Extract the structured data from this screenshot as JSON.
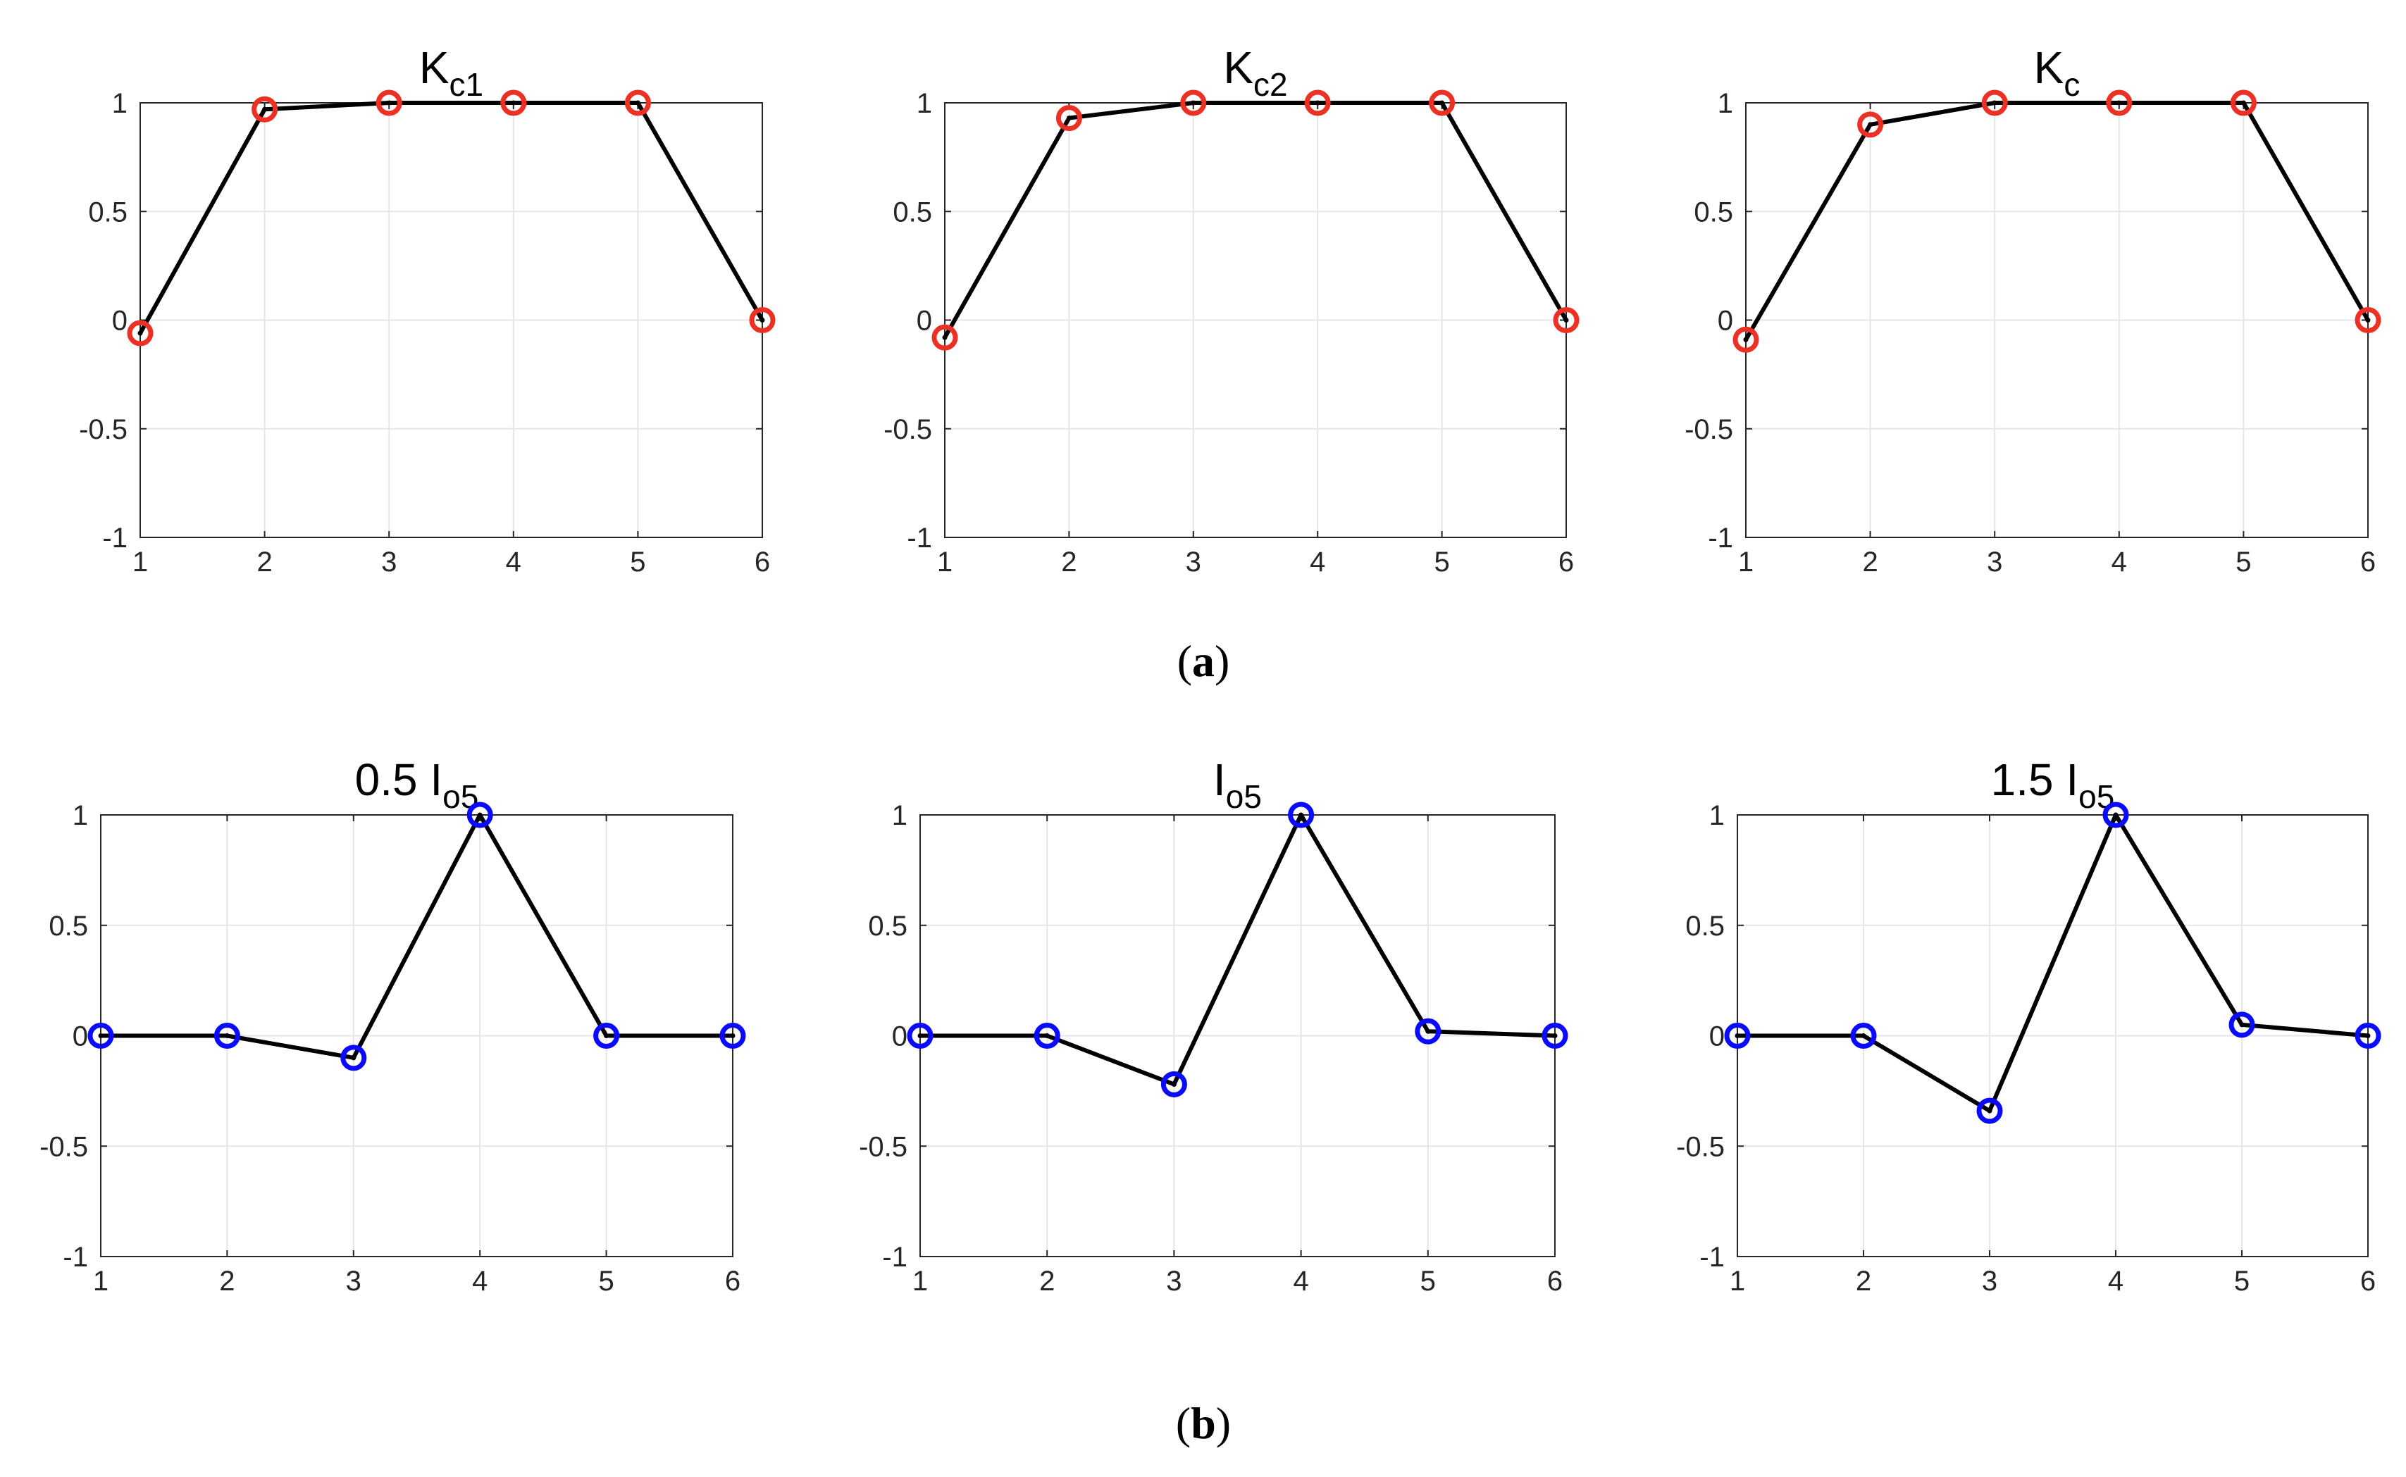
{
  "captions": {
    "a": {
      "open": "(",
      "letter": "a",
      "close": ")"
    },
    "b": {
      "open": "(",
      "letter": "b",
      "close": ")"
    }
  },
  "colors": {
    "row_a_marker": "#ec3023",
    "row_b_marker": "#0a0aff",
    "line": "#000000"
  },
  "chart_data": [
    {
      "type": "line",
      "title": "K",
      "title_sub": "c1",
      "categories": [
        1,
        2,
        3,
        4,
        5,
        6
      ],
      "values": [
        -0.06,
        0.97,
        1.0,
        1.0,
        1.0,
        0.0
      ],
      "ylim": [
        -1,
        1
      ],
      "yticks": [
        1,
        0.5,
        0,
        -0.5,
        -1
      ],
      "grid": true,
      "marker": "circle",
      "marker_color": "#ec3023"
    },
    {
      "type": "line",
      "title": "K",
      "title_sub": "c2",
      "categories": [
        1,
        2,
        3,
        4,
        5,
        6
      ],
      "values": [
        -0.08,
        0.93,
        1.0,
        1.0,
        1.0,
        0.0
      ],
      "ylim": [
        -1,
        1
      ],
      "yticks": [
        1,
        0.5,
        0,
        -0.5,
        -1
      ],
      "grid": true,
      "marker": "circle",
      "marker_color": "#ec3023"
    },
    {
      "type": "line",
      "title": "K",
      "title_sub": "c",
      "categories": [
        1,
        2,
        3,
        4,
        5,
        6
      ],
      "values": [
        -0.09,
        0.9,
        1.0,
        1.0,
        1.0,
        0.0
      ],
      "ylim": [
        -1,
        1
      ],
      "yticks": [
        1,
        0.5,
        0,
        -0.5,
        -1
      ],
      "grid": true,
      "marker": "circle",
      "marker_color": "#ec3023"
    },
    {
      "type": "line",
      "title": "0.5 I",
      "title_sub": "o5",
      "categories": [
        1,
        2,
        3,
        4,
        5,
        6
      ],
      "values": [
        0.0,
        0.0,
        -0.1,
        1.0,
        0.0,
        0.0
      ],
      "ylim": [
        -1,
        1
      ],
      "yticks": [
        1,
        0.5,
        0,
        -0.5,
        -1
      ],
      "grid": true,
      "marker": "circle",
      "marker_color": "#0a0aff"
    },
    {
      "type": "line",
      "title": "I",
      "title_sub": "o5",
      "categories": [
        1,
        2,
        3,
        4,
        5,
        6
      ],
      "values": [
        0.0,
        0.0,
        -0.22,
        1.0,
        0.02,
        0.0
      ],
      "ylim": [
        -1,
        1
      ],
      "yticks": [
        1,
        0.5,
        0,
        -0.5,
        -1
      ],
      "grid": true,
      "marker": "circle",
      "marker_color": "#0a0aff"
    },
    {
      "type": "line",
      "title": "1.5 I",
      "title_sub": "o5",
      "categories": [
        1,
        2,
        3,
        4,
        5,
        6
      ],
      "values": [
        0.0,
        0.0,
        -0.34,
        1.0,
        0.05,
        0.0
      ],
      "ylim": [
        -1,
        1
      ],
      "yticks": [
        1,
        0.5,
        0,
        -0.5,
        -1
      ],
      "grid": true,
      "marker": "circle",
      "marker_color": "#0a0aff"
    }
  ]
}
